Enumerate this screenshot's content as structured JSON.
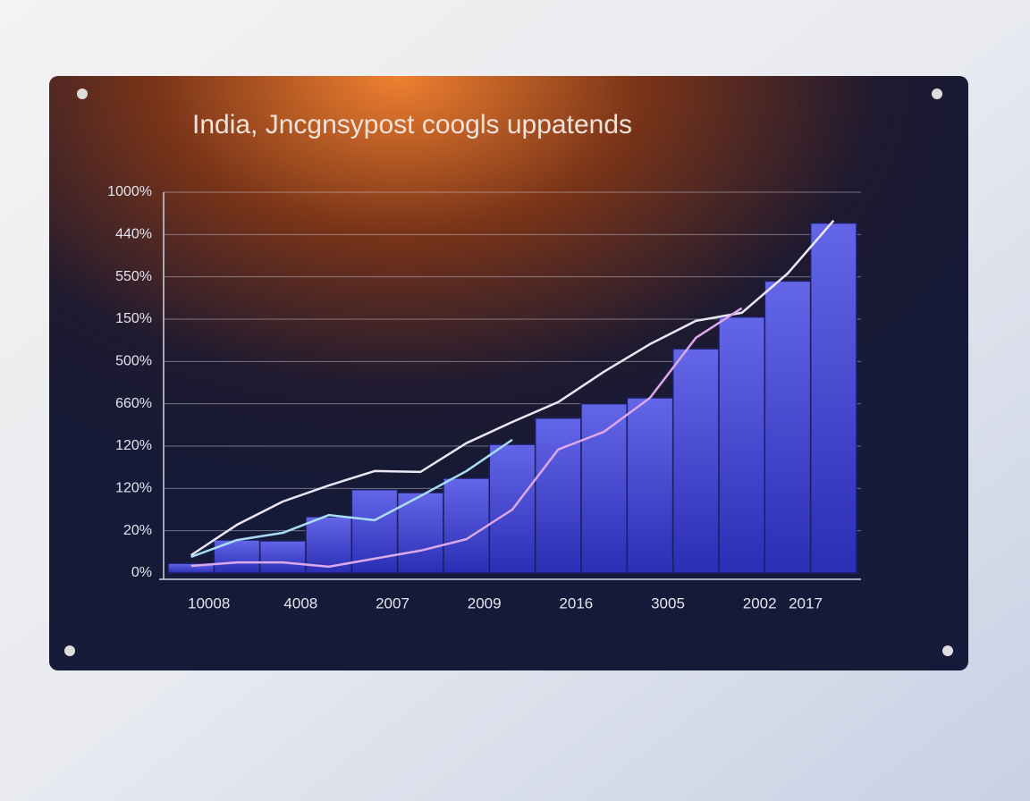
{
  "chart_data": {
    "type": "bar",
    "title": "India, Jncgnsypost coogls uppatends",
    "y_axis_labels": [
      "0%",
      "20%",
      "120%",
      "120%",
      "660%",
      "500%",
      "150%",
      "550%",
      "440%",
      "1000%"
    ],
    "ylim": [
      0,
      9
    ],
    "categories": [
      "10008",
      null,
      "4008",
      null,
      "2007",
      null,
      "2009",
      null,
      "2016",
      null,
      "3005",
      null,
      "2002",
      "2017",
      null
    ],
    "values": [
      0.23,
      0.78,
      0.76,
      1.33,
      1.97,
      1.9,
      2.24,
      3.04,
      3.66,
      4.0,
      4.14,
      5.3,
      6.05,
      6.9,
      8.27
    ],
    "color": "#4a50d8",
    "lines": [
      {
        "color": "#ece6f4",
        "values": [
          0.42,
          1.14,
          1.69,
          2.07,
          2.41,
          2.39,
          3.07,
          3.57,
          4.04,
          4.76,
          5.41,
          5.96,
          6.15,
          7.08,
          8.33
        ]
      },
      {
        "color": "#a8dcf4",
        "values": [
          0.38,
          0.78,
          0.95,
          1.37,
          1.25,
          1.82,
          2.41,
          3.15,
          null,
          null,
          null,
          null,
          null,
          null,
          null
        ]
      },
      {
        "color": "#dca8ec",
        "values": [
          0.17,
          0.25,
          0.25,
          0.15,
          0.34,
          0.53,
          0.8,
          1.5,
          2.92,
          3.34,
          4.14,
          5.56,
          6.26,
          null,
          null
        ]
      }
    ],
    "grid": true
  }
}
